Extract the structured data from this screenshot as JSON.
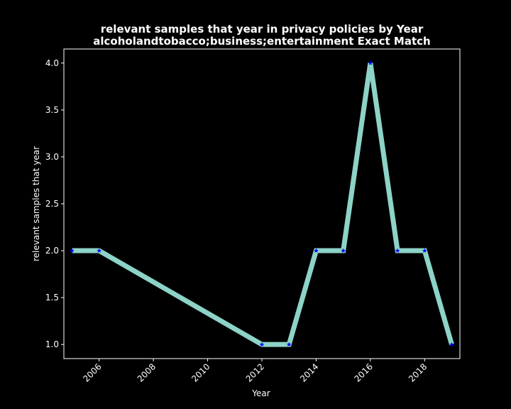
{
  "chart_data": {
    "type": "line",
    "title_line1": "relevant samples that year in privacy policies by Year",
    "title_line2": "alcoholandtobacco;business;entertainment Exact Match",
    "xlabel": "Year",
    "ylabel": "relevant samples that year",
    "xlim": [
      2004.7,
      2019.3
    ],
    "ylim": [
      0.85,
      4.15
    ],
    "x_ticks": [
      2006,
      2008,
      2010,
      2012,
      2014,
      2016,
      2018
    ],
    "y_ticks": [
      1.0,
      1.5,
      2.0,
      2.5,
      3.0,
      3.5,
      4.0
    ],
    "grid": false,
    "series": [
      {
        "x": [
          2005,
          2006,
          2012,
          2013,
          2014,
          2015,
          2016,
          2017,
          2018,
          2019
        ],
        "values": [
          2,
          2,
          1,
          1,
          2,
          2,
          4,
          2,
          2,
          1
        ]
      }
    ],
    "colors": {
      "background": "#000000",
      "line": "#8dd3c7",
      "marker": "#0000ff",
      "axes": "#ffffff",
      "text": "#ffffff"
    }
  }
}
